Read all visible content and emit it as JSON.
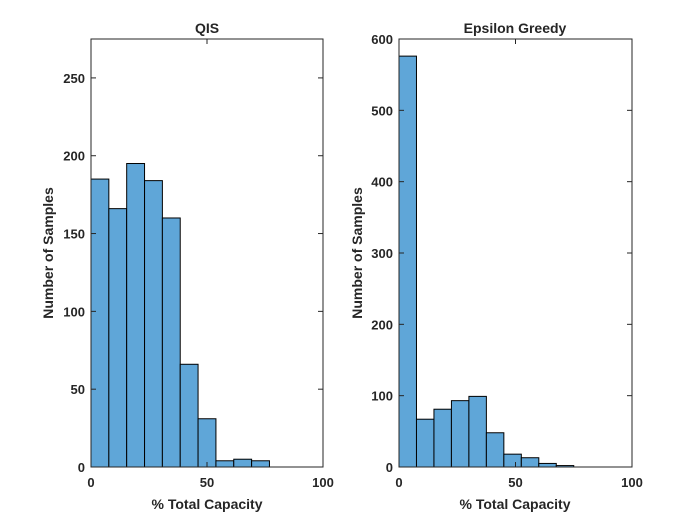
{
  "chart_data": [
    {
      "type": "bar",
      "title": "QIS",
      "xlabel": "% Total Capacity",
      "ylabel": "Number of Samples",
      "xlim": [
        0,
        100
      ],
      "ylim": [
        0,
        275
      ],
      "xticks": [
        0,
        50,
        100
      ],
      "yticks": [
        0,
        50,
        100,
        150,
        200,
        250
      ],
      "bin_edges": [
        0,
        7.69,
        15.38,
        23.08,
        30.77,
        38.46,
        46.15,
        53.85,
        61.54,
        69.23,
        76.92
      ],
      "values": [
        185,
        166,
        195,
        184,
        160,
        66,
        31,
        4,
        5,
        4
      ],
      "bar_color": "#5fa6d8",
      "grid": false
    },
    {
      "type": "bar",
      "title": "Epsilon Greedy",
      "xlabel": "% Total Capacity",
      "ylabel": "Number of Samples",
      "xlim": [
        0,
        100
      ],
      "ylim": [
        0,
        600
      ],
      "xticks": [
        0,
        50,
        100
      ],
      "yticks": [
        0,
        100,
        200,
        300,
        400,
        500,
        600
      ],
      "bin_edges": [
        0,
        7.5,
        15,
        22.5,
        30,
        37.5,
        45,
        52.5,
        60,
        67.5,
        75
      ],
      "values": [
        576,
        67,
        81,
        93,
        99,
        48,
        18,
        13,
        5,
        2
      ],
      "bar_color": "#5fa6d8",
      "grid": false
    }
  ]
}
